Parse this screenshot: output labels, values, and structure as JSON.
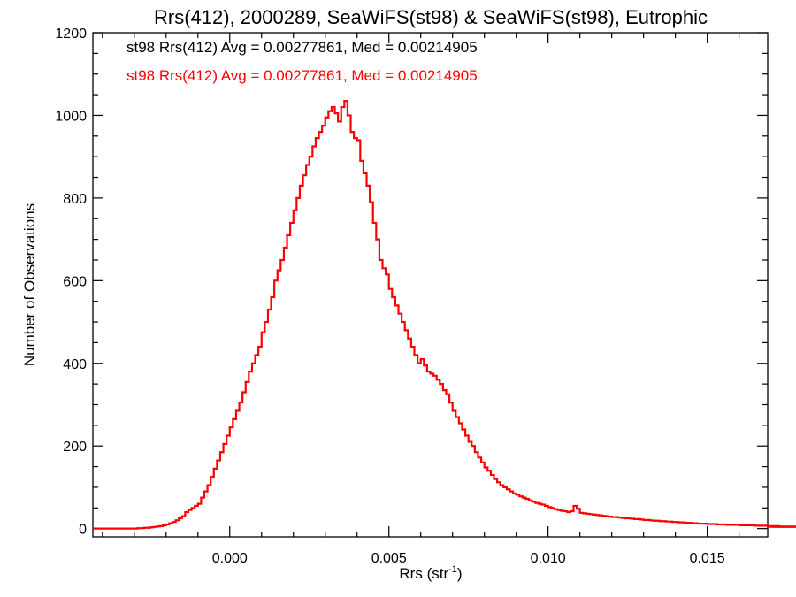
{
  "chart_data": {
    "type": "histogram",
    "title": "Rrs(412), 2000289, SeaWiFS(st98) & SeaWiFS(st98), Eutrophic",
    "xlabel": "Rrs (str",
    "xlabel_superscript": "-1",
    "xlabel_close": ")",
    "ylabel": "Number of Observations",
    "xlim": [
      -0.0043,
      0.0169
    ],
    "ylim": [
      -20,
      1200
    ],
    "xticks": [
      0.0,
      0.005,
      0.01,
      0.015
    ],
    "xtick_labels": [
      "0.000",
      "0.005",
      "0.010",
      "0.015"
    ],
    "yticks": [
      0,
      200,
      400,
      600,
      800,
      1000,
      1200
    ],
    "ytick_labels": [
      "0",
      "200",
      "400",
      "600",
      "800",
      "1000",
      "1200"
    ],
    "x_minor_step": 0.001,
    "y_minor_step": 50,
    "grid": false,
    "legend": [
      {
        "text": "st98 Rrs(412) Avg = 0.00277861, Med = 0.00214905",
        "color": "#000000"
      },
      {
        "text": "st98 Rrs(412) Avg = 0.00277861, Med = 0.00214905",
        "color": "#ff0000"
      }
    ],
    "series": [
      {
        "color": "#ff0000",
        "bin_width": 0.0001,
        "x_start": -0.0043,
        "counts": [
          0,
          0,
          0,
          0,
          0,
          0,
          0,
          0,
          0,
          0,
          0,
          0,
          0,
          0,
          1,
          1,
          2,
          2,
          3,
          4,
          5,
          6,
          8,
          10,
          13,
          16,
          20,
          25,
          30,
          40,
          45,
          50,
          55,
          60,
          75,
          90,
          105,
          125,
          145,
          165,
          185,
          205,
          225,
          245,
          265,
          285,
          305,
          330,
          355,
          380,
          400,
          420,
          440,
          475,
          500,
          530,
          560,
          600,
          625,
          650,
          680,
          710,
          740,
          770,
          800,
          830,
          855,
          880,
          900,
          925,
          945,
          960,
          975,
          995,
          1010,
          1020,
          1005,
          985,
          1020,
          1035,
          1000,
          960,
          945,
          940,
          890,
          860,
          830,
          790,
          740,
          700,
          650,
          630,
          615,
          580,
          560,
          540,
          520,
          500,
          480,
          460,
          440,
          420,
          400,
          410,
          395,
          380,
          375,
          370,
          360,
          350,
          335,
          325,
          305,
          285,
          270,
          255,
          240,
          225,
          210,
          200,
          185,
          172,
          160,
          148,
          140,
          130,
          120,
          112,
          105,
          100,
          95,
          90,
          85,
          82,
          78,
          75,
          72,
          68,
          65,
          62,
          60,
          58,
          55,
          52,
          50,
          47,
          45,
          43,
          42,
          40,
          42,
          55,
          48,
          38,
          37,
          36,
          35,
          34,
          33,
          32,
          31,
          30,
          29,
          28,
          28,
          27,
          26,
          25,
          25,
          24,
          23,
          23,
          22,
          21,
          21,
          20,
          19,
          19,
          18,
          18,
          17,
          17,
          16,
          16,
          15,
          15,
          14,
          14,
          13,
          13,
          12,
          12,
          12,
          11,
          11,
          11,
          10,
          10,
          10,
          9,
          9,
          9,
          9,
          8,
          8,
          8,
          8,
          8,
          7,
          7,
          7,
          7,
          6,
          6,
          6,
          6,
          6,
          5,
          5,
          5,
          5,
          5,
          5,
          4,
          4,
          4
        ]
      }
    ]
  }
}
